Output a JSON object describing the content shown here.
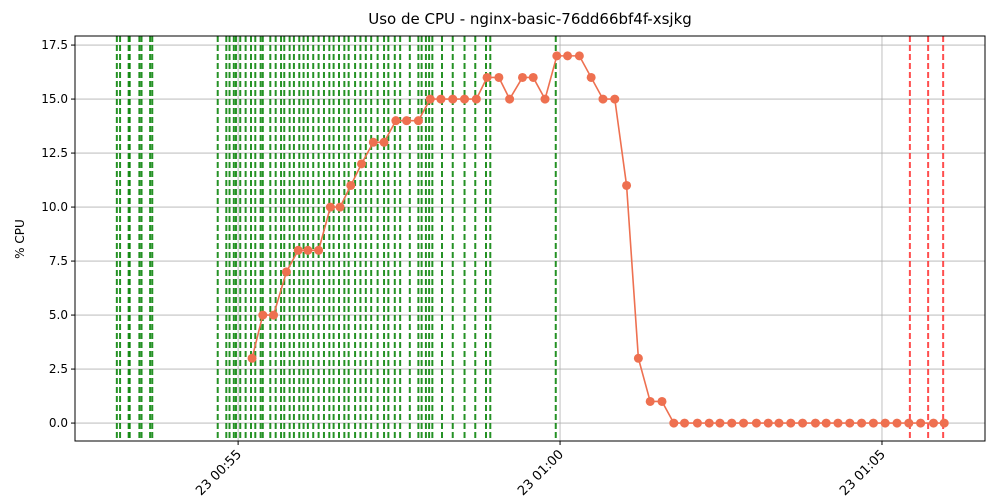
{
  "chart_data": {
    "type": "line",
    "title": "Uso de CPU - nginx-basic-76dd66bf4f-xsjkg",
    "y_label": "% CPU",
    "grid": true,
    "x": [
      "00:55:13",
      "00:55:23",
      "00:55:33",
      "00:55:45",
      "00:55:56",
      "00:56:05",
      "00:56:15",
      "00:56:26",
      "00:56:35",
      "00:56:45",
      "00:56:55",
      "00:57:06",
      "00:57:16",
      "00:57:27",
      "00:57:37",
      "00:57:48",
      "00:57:59",
      "00:58:09",
      "00:58:20",
      "00:58:31",
      "00:58:42",
      "00:58:52",
      "00:59:03",
      "00:59:13",
      "00:59:25",
      "00:59:35",
      "00:59:46",
      "00:59:57",
      "01:00:07",
      "01:00:18",
      "01:00:29",
      "01:00:40",
      "01:00:51",
      "01:01:02",
      "01:01:13",
      "01:01:24",
      "01:01:35",
      "01:01:46",
      "01:01:56",
      "01:02:08",
      "01:02:19",
      "01:02:29",
      "01:02:40",
      "01:02:51",
      "01:03:03",
      "01:03:14",
      "01:03:24",
      "01:03:35",
      "01:03:46",
      "01:03:58",
      "01:04:08",
      "01:04:19",
      "01:04:30",
      "01:04:41",
      "01:04:52",
      "01:05:03",
      "01:05:14",
      "01:05:25",
      "01:05:36",
      "01:05:48",
      "01:05:58"
    ],
    "series": [
      {
        "color": "#ee7050",
        "values": [
          3,
          5,
          5,
          7,
          8,
          8,
          8,
          10,
          10,
          11,
          12,
          13,
          13,
          14,
          14,
          14,
          15,
          15,
          15,
          15,
          15,
          16,
          16,
          15,
          16,
          16,
          15,
          17,
          17,
          17,
          16,
          15,
          15,
          11,
          3,
          1,
          1,
          0,
          0,
          0,
          0,
          0,
          0,
          0,
          0,
          0,
          0,
          0,
          0,
          0,
          0,
          0,
          0,
          0,
          0,
          0,
          0,
          0,
          0,
          0,
          0
        ]
      }
    ],
    "events": [
      {
        "color": "#008000",
        "x": [
          "00:53:07",
          "00:53:10",
          "00:53:18",
          "00:53:19",
          "00:53:28",
          "00:53:30",
          "00:53:38",
          "00:53:40",
          "00:54:41",
          "00:54:49",
          "00:54:52",
          "00:54:56",
          "00:54:58",
          "00:55:02",
          "00:55:07",
          "00:55:12",
          "00:55:16",
          "00:55:21",
          "00:55:23",
          "00:55:30",
          "00:55:35",
          "00:55:40",
          "00:55:43",
          "00:55:48",
          "00:55:52",
          "00:55:57",
          "00:56:01",
          "00:56:05",
          "00:56:10",
          "00:56:15",
          "00:56:20",
          "00:56:25",
          "00:56:29",
          "00:56:34",
          "00:56:39",
          "00:56:43",
          "00:56:49",
          "00:56:54",
          "00:56:59",
          "00:57:04",
          "00:57:10",
          "00:57:16",
          "00:57:20",
          "00:57:26",
          "00:57:31",
          "00:57:40",
          "00:57:48",
          "00:57:51",
          "00:57:55",
          "00:57:58",
          "00:58:01",
          "00:58:10",
          "00:58:20",
          "00:58:31",
          "00:58:41",
          "00:58:51",
          "00:58:55",
          "00:59:56"
        ]
      },
      {
        "color": "#ff3030",
        "x": [
          "01:05:26",
          "01:05:43",
          "01:05:57"
        ]
      }
    ],
    "xlim": [
      "00:52:28",
      "01:06:36"
    ],
    "xticks": [
      {
        "value": "00:55:00",
        "label": "23 00:55"
      },
      {
        "value": "01:00:00",
        "label": "23 01:00"
      },
      {
        "value": "01:05:00",
        "label": "23 01:05"
      }
    ],
    "ylim": [
      -0.83,
      17.92
    ],
    "yticks": [
      {
        "value": 0,
        "label": "0.0"
      },
      2.5,
      {
        "value": 5,
        "label": "5.0"
      },
      7.5,
      {
        "value": 10,
        "label": "10.0"
      },
      12.5,
      {
        "value": 15,
        "label": "15.0"
      },
      17.5
    ]
  }
}
